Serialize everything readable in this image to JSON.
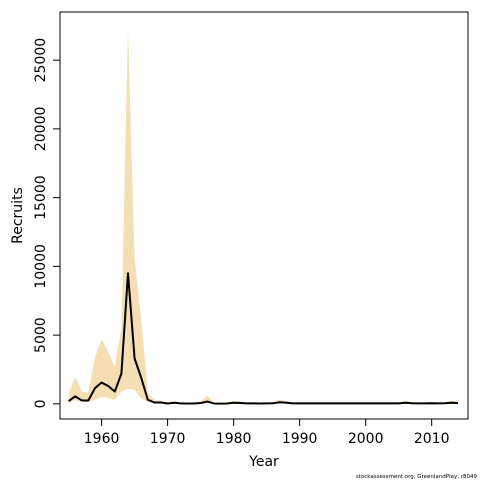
{
  "chart_data": {
    "type": "area",
    "xlabel": "Year",
    "ylabel": "Recruits",
    "xlim": [
      1953.7,
      2015.5
    ],
    "ylim": [
      -1100,
      28500
    ],
    "x_ticks": [
      1960,
      1970,
      1980,
      1990,
      2000,
      2010
    ],
    "y_ticks": [
      0,
      5000,
      10000,
      15000,
      20000,
      25000
    ],
    "grid": false,
    "colors": {
      "band": "#f5deb3",
      "line": "#000000"
    },
    "credit": "stockassessment.org, GreenlandPlay, r8049",
    "series": [
      {
        "x": [
          1955,
          1956,
          1957,
          1958,
          1959,
          1960,
          1961,
          1962,
          1963,
          1964,
          1965,
          1966,
          1967,
          1968,
          1969,
          1970,
          1971,
          1972,
          1973,
          1974,
          1975,
          1976,
          1977,
          1978,
          1979,
          1980,
          1981,
          1982,
          1983,
          1984,
          1985,
          1986,
          1987,
          1988,
          1989,
          1990,
          1991,
          1992,
          1993,
          1994,
          1995,
          1996,
          1997,
          1998,
          1999,
          2000,
          2001,
          2002,
          2003,
          2004,
          2005,
          2006,
          2007,
          2008,
          2009,
          2010,
          2011,
          2012,
          2013,
          2014
        ],
        "estimate": [
          200,
          550,
          250,
          250,
          1150,
          1550,
          1300,
          900,
          2200,
          9500,
          3300,
          1900,
          300,
          100,
          100,
          30,
          80,
          40,
          30,
          30,
          60,
          170,
          30,
          20,
          30,
          80,
          60,
          40,
          40,
          30,
          40,
          50,
          120,
          80,
          40,
          40,
          40,
          40,
          40,
          40,
          40,
          40,
          40,
          40,
          40,
          40,
          40,
          40,
          40,
          40,
          40,
          80,
          50,
          40,
          40,
          50,
          40,
          50,
          80,
          60
        ],
        "lower": [
          80,
          280,
          140,
          150,
          300,
          500,
          450,
          280,
          900,
          1100,
          1000,
          400,
          120,
          40,
          40,
          10,
          30,
          15,
          10,
          10,
          20,
          60,
          10,
          8,
          10,
          30,
          20,
          15,
          15,
          10,
          15,
          20,
          60,
          30,
          15,
          15,
          15,
          15,
          15,
          15,
          15,
          15,
          15,
          15,
          15,
          15,
          15,
          15,
          15,
          15,
          15,
          30,
          20,
          15,
          15,
          20,
          15,
          20,
          30,
          20
        ],
        "upper": [
          700,
          1950,
          900,
          800,
          3400,
          4700,
          3800,
          2700,
          5500,
          27400,
          10500,
          6200,
          800,
          260,
          260,
          90,
          200,
          100,
          80,
          80,
          160,
          600,
          90,
          60,
          80,
          220,
          160,
          110,
          110,
          80,
          110,
          140,
          320,
          200,
          110,
          110,
          110,
          110,
          110,
          110,
          110,
          110,
          110,
          110,
          110,
          110,
          110,
          110,
          110,
          110,
          110,
          220,
          140,
          110,
          110,
          140,
          110,
          140,
          220,
          160
        ]
      }
    ]
  }
}
